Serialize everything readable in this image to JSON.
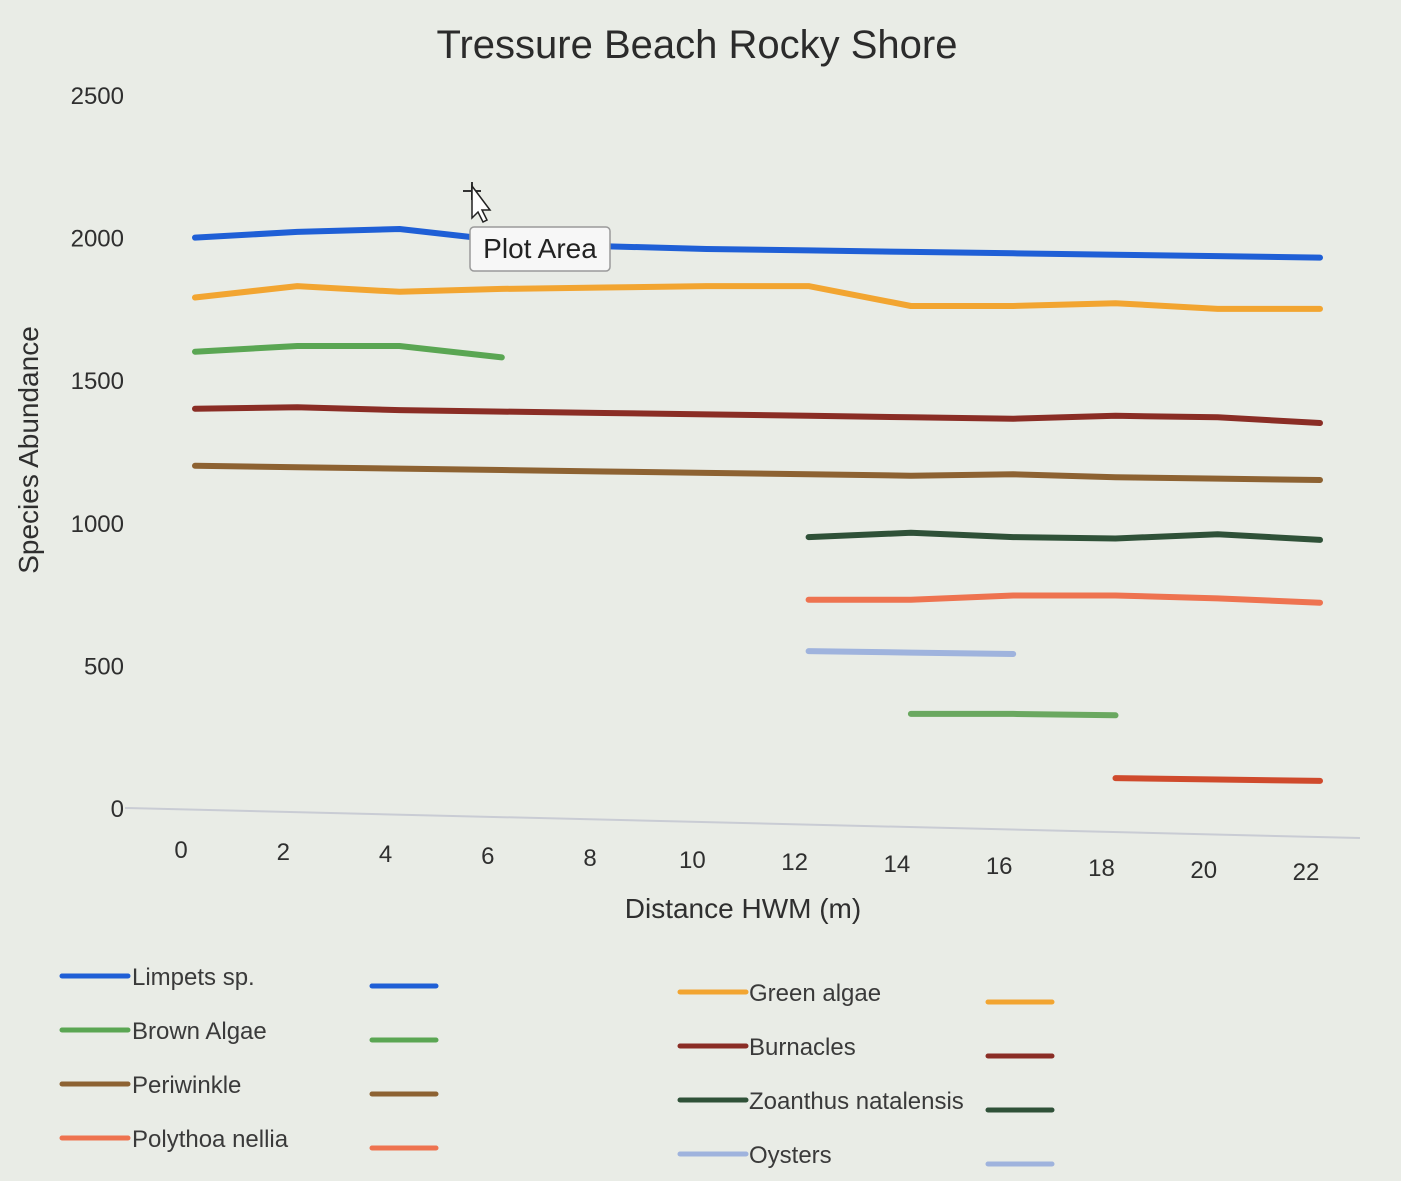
{
  "chart_data": {
    "type": "line",
    "title": "Tressure Beach Rocky Shore",
    "xlabel": "Distance HWM (m)",
    "ylabel": "Species Abundance",
    "xlim": [
      0,
      22
    ],
    "ylim": [
      0,
      2500
    ],
    "x_ticks": [
      0,
      2,
      4,
      6,
      8,
      10,
      12,
      14,
      16,
      18,
      20,
      22
    ],
    "y_ticks": [
      0,
      500,
      1000,
      1500,
      2000,
      2500
    ],
    "grid": false,
    "legend_position": "bottom",
    "series": [
      {
        "name": "Limpets sp.",
        "color": "#1f5fd6",
        "x": [
          0,
          2,
          4,
          6,
          8,
          10,
          12,
          14,
          16,
          18,
          20,
          22
        ],
        "y": [
          2000,
          2020,
          2030,
          1990,
          1970,
          1960,
          1955,
          1950,
          1945,
          1940,
          1935,
          1930
        ]
      },
      {
        "name": "Green algae",
        "color": "#f2a531",
        "x": [
          0,
          2,
          4,
          6,
          8,
          10,
          12,
          14,
          16,
          18,
          20,
          22
        ],
        "y": [
          1790,
          1830,
          1810,
          1820,
          1825,
          1830,
          1830,
          1760,
          1760,
          1770,
          1750,
          1750
        ]
      },
      {
        "name": "Brown Algae",
        "color": "#5aa653",
        "x": [
          0,
          2,
          4,
          6
        ],
        "y": [
          1600,
          1620,
          1620,
          1580
        ]
      },
      {
        "name": "Burnacles",
        "color": "#8a2d25",
        "x": [
          0,
          2,
          4,
          6,
          8,
          10,
          12,
          14,
          16,
          18,
          20,
          22
        ],
        "y": [
          1400,
          1405,
          1395,
          1390,
          1385,
          1380,
          1375,
          1370,
          1365,
          1375,
          1370,
          1350
        ]
      },
      {
        "name": "Periwinkle",
        "color": "#8d6232",
        "x": [
          0,
          2,
          4,
          6,
          8,
          10,
          12,
          14,
          16,
          18,
          20,
          22
        ],
        "y": [
          1200,
          1195,
          1190,
          1185,
          1180,
          1175,
          1170,
          1165,
          1170,
          1160,
          1155,
          1150
        ]
      },
      {
        "name": "Zoanthus natalensis",
        "color": "#2f5138",
        "x": [
          12,
          14,
          16,
          18,
          20,
          22
        ],
        "y": [
          950,
          965,
          950,
          945,
          960,
          940
        ]
      },
      {
        "name": "Polythoa nellia",
        "color": "#ee7350",
        "x": [
          12,
          14,
          16,
          18,
          20,
          22
        ],
        "y": [
          730,
          730,
          745,
          745,
          735,
          720
        ]
      },
      {
        "name": "Oysters",
        "color": "#9fb3dd",
        "x": [
          12,
          14,
          16
        ],
        "y": [
          550,
          545,
          540
        ]
      },
      {
        "name": "",
        "color": "#6aa860",
        "x": [
          14,
          16,
          18
        ],
        "y": [
          330,
          330,
          325
        ]
      },
      {
        "name": "",
        "color": "#cf4a2c",
        "x": [
          18,
          20,
          22
        ],
        "y": [
          105,
          100,
          95
        ]
      }
    ]
  },
  "legend_left": [
    0,
    2,
    4,
    6
  ],
  "legend_right": [
    1,
    3,
    5,
    7
  ],
  "tooltip": {
    "text": "Plot Area"
  }
}
